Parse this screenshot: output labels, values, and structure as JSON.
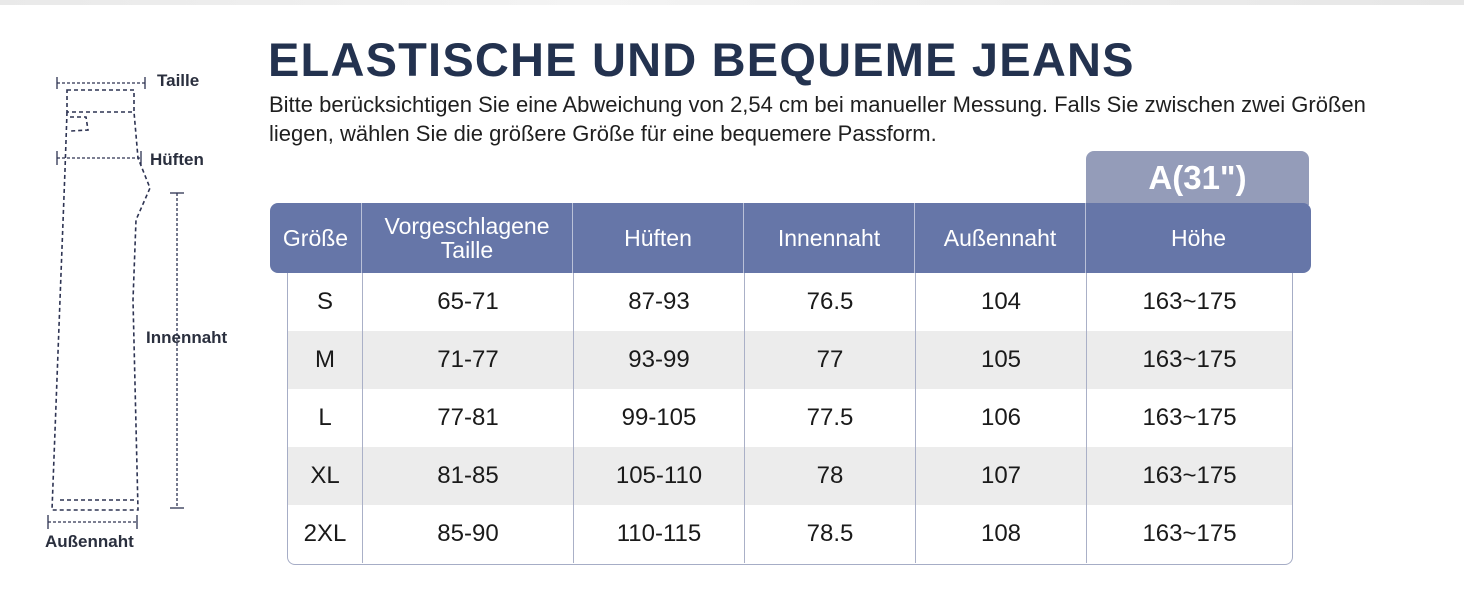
{
  "diagram": {
    "labels": {
      "waist": "Taille",
      "hips": "Hüften",
      "inseam": "Innennaht",
      "outseam": "Außennaht"
    }
  },
  "heading": {
    "title": "ELASTISCHE UND BEQUEME JEANS",
    "subtitle": "Bitte berücksichtigen Sie eine Abweichung von 2,54 cm bei manueller Messung. Falls Sie zwischen zwei Größen liegen, wählen Sie die größere Größe für eine bequemere Passform."
  },
  "table": {
    "model_tab": "A(31\")",
    "headers": [
      "Größe",
      "Vorgeschlagene Taille",
      "Hüften",
      "Innennaht",
      "Außennaht",
      "Höhe"
    ],
    "rows": [
      [
        "S",
        "65-71",
        "87-93",
        "76.5",
        "104",
        "163~175"
      ],
      [
        "M",
        "71-77",
        "93-99",
        "77",
        "105",
        "163~175"
      ],
      [
        "L",
        "77-81",
        "99-105",
        "77.5",
        "106",
        "163~175"
      ],
      [
        "XL",
        "81-85",
        "105-110",
        "78",
        "107",
        "163~175"
      ],
      [
        "2XL",
        "85-90",
        "110-115",
        "78.5",
        "108",
        "163~175"
      ]
    ]
  },
  "colors": {
    "header_bg": "#6676a8",
    "model_tab_bg": "#949cb9",
    "title": "#23324f",
    "row_shade": "#ececec"
  }
}
